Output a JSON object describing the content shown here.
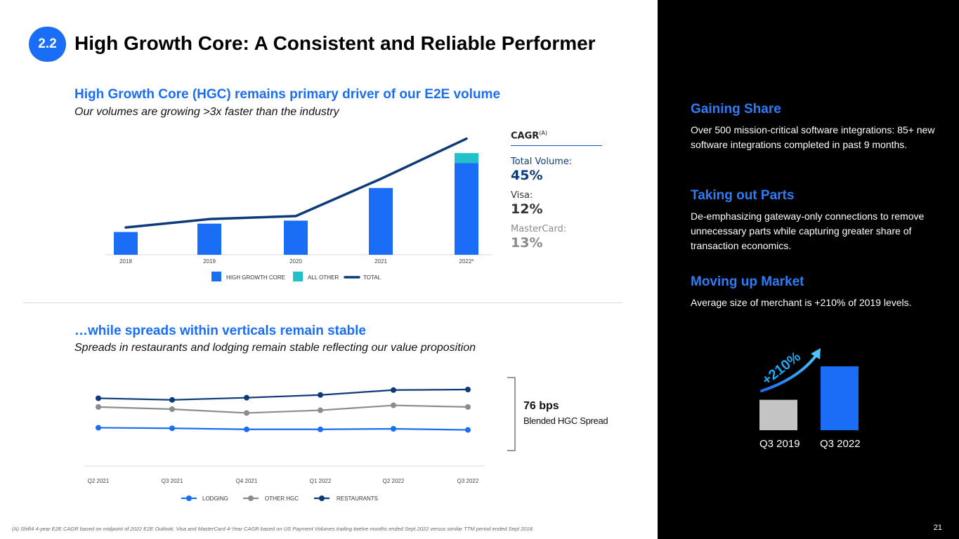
{
  "header": {
    "badge": "2.2",
    "title": "High Growth Core: A Consistent and Reliable Performer"
  },
  "section1": {
    "title": "High Growth Core (HGC) remains primary driver of our E2E volume",
    "subtitle": "Our volumes are growing >3x faster than the industry"
  },
  "section2": {
    "title": "…while spreads within verticals remain stable",
    "subtitle": "Spreads in restaurants and lodging remain stable reflecting our value proposition"
  },
  "cagr": {
    "title": "CAGR",
    "superscript": "(A)",
    "items": [
      {
        "label": "Total Volume:",
        "value": "45%",
        "label_color": "#0d3b7a",
        "value_color": "#0d3b7a"
      },
      {
        "label": "Visa:",
        "value": "12%",
        "label_color": "#333333",
        "value_color": "#333333"
      },
      {
        "label": "MasterCard:",
        "value": "13%",
        "label_color": "#8a8a8a",
        "value_color": "#8a8a8a"
      }
    ]
  },
  "spread": {
    "value": "76 bps",
    "label": "Blended HGC Spread"
  },
  "footnote": "(A) Shift4 4-year E2E CAGR based on midpoint of 2022 E2E Outlook; Visa and MasterCard 4-Year CAGR based on US Payment Volumes trailing twelve months ended Sept 2022 versus similar TTM period ended Sept 2018.",
  "right_panel": {
    "points": [
      {
        "title": "Gaining Share",
        "text": "Over 500 mission-critical software integrations: 85+ new software integrations completed in past 9 months."
      },
      {
        "title": "Taking out Parts",
        "text": "De-emphasizing gateway-only connections to remove unnecessary parts while capturing greater share of transaction economics."
      },
      {
        "title": "Moving up Market",
        "text": "Average size of merchant is +210% of 2019 levels."
      }
    ],
    "growth_label": "+210%",
    "page_number": "21"
  },
  "chart_data": [
    {
      "type": "bar",
      "categories": [
        "2018",
        "2019",
        "2020",
        "2021",
        "2022*"
      ],
      "series": [
        {
          "name": "HIGH GROWTH CORE",
          "kind": "bar",
          "color": "#1a6ef5",
          "values": [
            30,
            41,
            45,
            88,
            121
          ]
        },
        {
          "name": "ALL OTHER",
          "kind": "bar-stacked",
          "color": "#22c1c9",
          "values": [
            0,
            0,
            0,
            0,
            13
          ]
        },
        {
          "name": "TOTAL",
          "kind": "line",
          "color": "#0d3b7a",
          "values": [
            36,
            47,
            51,
            100,
            153
          ]
        }
      ],
      "ylim": [
        0,
        160
      ],
      "legend": "bottom",
      "grid": false
    },
    {
      "type": "line",
      "categories": [
        "Q2 2021",
        "Q3 2021",
        "Q4 2021",
        "Q1 2022",
        "Q2 2022",
        "Q3 2022"
      ],
      "series": [
        {
          "name": "LODGING",
          "color": "#1a6ef5",
          "values": [
            65,
            64,
            62,
            62,
            63,
            61
          ]
        },
        {
          "name": "OTHER HGC",
          "color": "#8c8c8c",
          "values": [
            103,
            99,
            92,
            97,
            106,
            103
          ]
        },
        {
          "name": "RESTAURANTS",
          "color": "#0d3b7a",
          "values": [
            119,
            116,
            120,
            125,
            134,
            135
          ]
        }
      ],
      "ylim": [
        0,
        180
      ],
      "legend": "bottom",
      "grid": false
    },
    {
      "type": "bar",
      "categories": [
        "Q3 2019",
        "Q3 2022"
      ],
      "values": [
        1.0,
        2.1
      ],
      "colors": [
        "#c4c4c4",
        "#1a6ef5"
      ],
      "ylim": [
        0,
        2.2
      ]
    }
  ]
}
